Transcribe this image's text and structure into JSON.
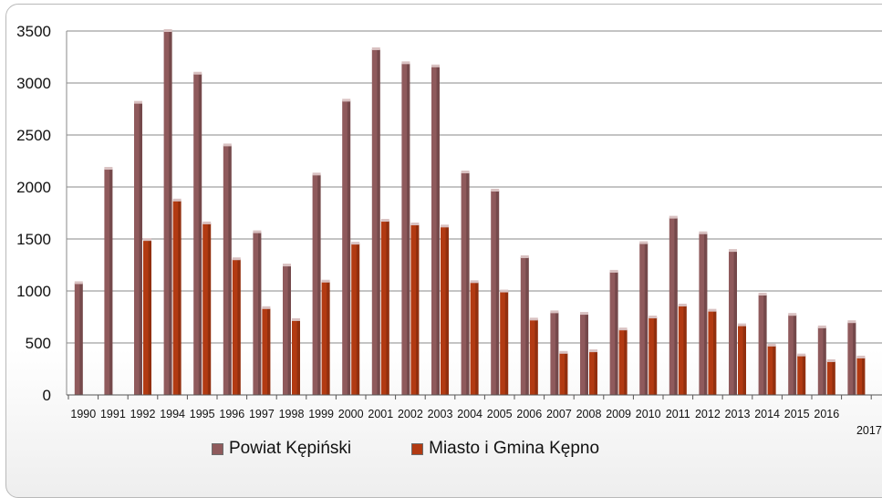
{
  "chart_data": {
    "type": "bar",
    "categories": [
      "1990",
      "1991",
      "1992",
      "1994",
      "1995",
      "1996",
      "1997",
      "1998",
      "1999",
      "2000",
      "2001",
      "2002",
      "2003",
      "2004",
      "2005",
      "2006",
      "2007",
      "2008",
      "2009",
      "2010",
      "2011",
      "2012",
      "2013",
      "2014",
      "2015",
      "2016",
      "2017"
    ],
    "series": [
      {
        "name": "Powiat Kępiński",
        "color": "#8f5a5c",
        "values": [
          1075,
          2175,
          2810,
          3500,
          3090,
          2400,
          1565,
          1245,
          2120,
          2830,
          3325,
          3190,
          3160,
          2140,
          1965,
          1325,
          795,
          780,
          1185,
          1460,
          1705,
          1555,
          1385,
          965,
          770,
          650,
          700
        ]
      },
      {
        "name": "Miasto i Gmina Kępno",
        "color": "#b23a12",
        "values": [
          null,
          null,
          1490,
          1870,
          1650,
          1305,
          835,
          720,
          1090,
          1455,
          1675,
          1640,
          1620,
          1085,
          995,
          725,
          405,
          420,
          630,
          745,
          860,
          810,
          670,
          475,
          380,
          325,
          360
        ]
      }
    ],
    "yticks": [
      0,
      500,
      1000,
      1500,
      2000,
      2500,
      3000,
      3500
    ],
    "ylim": [
      0,
      3500
    ],
    "grid": true,
    "legend": "bottom"
  }
}
